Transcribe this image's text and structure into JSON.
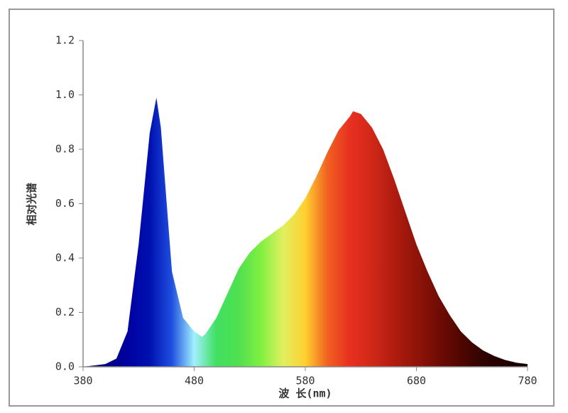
{
  "chart_data": {
    "type": "area",
    "x_label": "波 长(nm)",
    "y_label": "相对光谱",
    "x": [
      380,
      390,
      400,
      410,
      420,
      430,
      440,
      446,
      450,
      460,
      470,
      480,
      487,
      490,
      500,
      510,
      520,
      530,
      540,
      550,
      560,
      570,
      580,
      590,
      600,
      610,
      620,
      623,
      630,
      640,
      650,
      660,
      670,
      680,
      690,
      700,
      710,
      720,
      730,
      740,
      750,
      760,
      770,
      780
    ],
    "values": [
      0,
      0.005,
      0.01,
      0.03,
      0.13,
      0.45,
      0.86,
      0.99,
      0.88,
      0.35,
      0.18,
      0.13,
      0.11,
      0.12,
      0.18,
      0.27,
      0.36,
      0.42,
      0.46,
      0.49,
      0.52,
      0.56,
      0.62,
      0.7,
      0.79,
      0.87,
      0.92,
      0.94,
      0.93,
      0.88,
      0.8,
      0.69,
      0.57,
      0.45,
      0.35,
      0.26,
      0.19,
      0.13,
      0.09,
      0.06,
      0.04,
      0.025,
      0.015,
      0.01
    ],
    "colors": [
      "#000040",
      "#000080",
      "#0000a0",
      "#0010b0",
      "#2050e0",
      "#a0f0ff",
      "#40e060",
      "#50e050",
      "#80f040",
      "#e0f060",
      "#ffd030",
      "#f06020",
      "#e83020",
      "#d02818",
      "#b01c10",
      "#901408",
      "#700c04",
      "#500600",
      "#300300",
      "#200100",
      "#100000"
    ],
    "xlim": [
      380,
      780
    ],
    "ylim": [
      0,
      1.2
    ],
    "xticks": [
      380,
      480,
      580,
      680,
      780
    ],
    "yticks": [
      {
        "value": 0,
        "label": "0.0"
      },
      {
        "value": 0.2,
        "label": "0.2"
      },
      {
        "value": 0.4,
        "label": "0.4"
      },
      {
        "value": 0.6,
        "label": "0.6"
      },
      {
        "value": 0.8,
        "label": "0.8"
      },
      {
        "value": 1,
        "label": "1.0"
      },
      {
        "value": 1.2,
        "label": "1.2"
      }
    ]
  }
}
